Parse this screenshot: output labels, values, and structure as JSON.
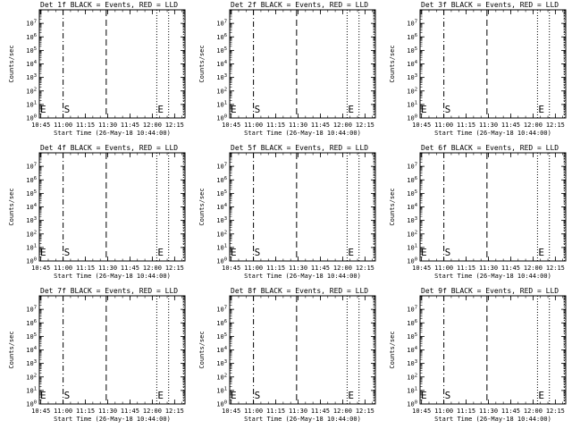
{
  "chart_data": [
    {
      "type": "line",
      "title": "Det 1f BLACK = Events, RED = LLD",
      "xlabel": "Start Time (26-May-18 10:44:00)",
      "ylabel": "Counts/sec",
      "yscale": "log",
      "ylim": [
        1,
        100000000
      ],
      "xlim": [
        "10:44",
        "12:22"
      ],
      "x_ticks": [
        "10:45",
        "11:00",
        "11:15",
        "11:30",
        "11:45",
        "12:00",
        "12:15"
      ],
      "y_ticks": [
        "10^0",
        "10^1",
        "10^2",
        "10^3",
        "10^4",
        "10^5",
        "10^6",
        "10^7"
      ],
      "series": [],
      "markers": [
        {
          "time": "10:44",
          "style": "dotted",
          "label": "E"
        },
        {
          "time": "11:00",
          "style": "dashdot",
          "label": "S"
        },
        {
          "time": "11:29",
          "style": "dashed",
          "label": ""
        },
        {
          "time": "12:03",
          "style": "dotted",
          "label": "E"
        },
        {
          "time": "12:11",
          "style": "dotted",
          "label": ""
        },
        {
          "time": "12:21",
          "style": "dotted",
          "label": ""
        }
      ]
    },
    {
      "type": "line",
      "title": "Det 2f BLACK = Events, RED = LLD",
      "xlabel": "Start Time (26-May-18 10:44:00)",
      "ylabel": "Counts/sec",
      "yscale": "log",
      "ylim": [
        1,
        100000000
      ],
      "xlim": [
        "10:44",
        "12:22"
      ],
      "x_ticks": [
        "10:45",
        "11:00",
        "11:15",
        "11:30",
        "11:45",
        "12:00",
        "12:15"
      ],
      "y_ticks": [
        "10^0",
        "10^1",
        "10^2",
        "10^3",
        "10^4",
        "10^5",
        "10^6",
        "10^7"
      ],
      "series": [],
      "markers": [
        {
          "time": "10:44",
          "style": "dotted",
          "label": "E"
        },
        {
          "time": "11:00",
          "style": "dashdot",
          "label": "S"
        },
        {
          "time": "11:29",
          "style": "dashed",
          "label": ""
        },
        {
          "time": "12:03",
          "style": "dotted",
          "label": "E"
        },
        {
          "time": "12:11",
          "style": "dotted",
          "label": ""
        },
        {
          "time": "12:21",
          "style": "dotted",
          "label": ""
        }
      ]
    },
    {
      "type": "line",
      "title": "Det 3f BLACK = Events, RED = LLD",
      "xlabel": "Start Time (26-May-18 10:44:00)",
      "ylabel": "Counts/sec",
      "yscale": "log",
      "ylim": [
        1,
        100000000
      ],
      "xlim": [
        "10:44",
        "12:22"
      ],
      "x_ticks": [
        "10:45",
        "11:00",
        "11:15",
        "11:30",
        "11:45",
        "12:00",
        "12:15"
      ],
      "y_ticks": [
        "10^0",
        "10^1",
        "10^2",
        "10^3",
        "10^4",
        "10^5",
        "10^6",
        "10^7"
      ],
      "series": [],
      "markers": [
        {
          "time": "10:44",
          "style": "dotted",
          "label": "E"
        },
        {
          "time": "11:00",
          "style": "dashdot",
          "label": "S"
        },
        {
          "time": "11:29",
          "style": "dashed",
          "label": ""
        },
        {
          "time": "12:03",
          "style": "dotted",
          "label": "E"
        },
        {
          "time": "12:11",
          "style": "dotted",
          "label": ""
        },
        {
          "time": "12:21",
          "style": "dotted",
          "label": ""
        }
      ]
    },
    {
      "type": "line",
      "title": "Det 4f BLACK = Events, RED = LLD",
      "xlabel": "Start Time (26-May-18 10:44:00)",
      "ylabel": "Counts/sec",
      "yscale": "log",
      "ylim": [
        1,
        100000000
      ],
      "xlim": [
        "10:44",
        "12:22"
      ],
      "x_ticks": [
        "10:45",
        "11:00",
        "11:15",
        "11:30",
        "11:45",
        "12:00",
        "12:15"
      ],
      "y_ticks": [
        "10^0",
        "10^1",
        "10^2",
        "10^3",
        "10^4",
        "10^5",
        "10^6",
        "10^7"
      ],
      "series": [],
      "markers": [
        {
          "time": "10:44",
          "style": "dotted",
          "label": "E"
        },
        {
          "time": "11:00",
          "style": "dashdot",
          "label": "S"
        },
        {
          "time": "11:29",
          "style": "dashed",
          "label": ""
        },
        {
          "time": "12:03",
          "style": "dotted",
          "label": "E"
        },
        {
          "time": "12:11",
          "style": "dotted",
          "label": ""
        },
        {
          "time": "12:21",
          "style": "dotted",
          "label": ""
        }
      ]
    },
    {
      "type": "line",
      "title": "Det 5f BLACK = Events, RED = LLD",
      "xlabel": "Start Time (26-May-18 10:44:00)",
      "ylabel": "Counts/sec",
      "yscale": "log",
      "ylim": [
        1,
        100000000
      ],
      "xlim": [
        "10:44",
        "12:22"
      ],
      "x_ticks": [
        "10:45",
        "11:00",
        "11:15",
        "11:30",
        "11:45",
        "12:00",
        "12:15"
      ],
      "y_ticks": [
        "10^0",
        "10^1",
        "10^2",
        "10^3",
        "10^4",
        "10^5",
        "10^6",
        "10^7"
      ],
      "series": [],
      "markers": [
        {
          "time": "10:44",
          "style": "dotted",
          "label": "E"
        },
        {
          "time": "11:00",
          "style": "dashdot",
          "label": "S"
        },
        {
          "time": "11:29",
          "style": "dashed",
          "label": ""
        },
        {
          "time": "12:03",
          "style": "dotted",
          "label": "E"
        },
        {
          "time": "12:11",
          "style": "dotted",
          "label": ""
        },
        {
          "time": "12:21",
          "style": "dotted",
          "label": ""
        }
      ]
    },
    {
      "type": "line",
      "title": "Det 6f BLACK = Events, RED = LLD",
      "xlabel": "Start Time (26-May-18 10:44:00)",
      "ylabel": "Counts/sec",
      "yscale": "log",
      "ylim": [
        1,
        100000000
      ],
      "xlim": [
        "10:44",
        "12:22"
      ],
      "x_ticks": [
        "10:45",
        "11:00",
        "11:15",
        "11:30",
        "11:45",
        "12:00",
        "12:15"
      ],
      "y_ticks": [
        "10^0",
        "10^1",
        "10^2",
        "10^3",
        "10^4",
        "10^5",
        "10^6",
        "10^7"
      ],
      "series": [],
      "markers": [
        {
          "time": "10:44",
          "style": "dotted",
          "label": "E"
        },
        {
          "time": "11:00",
          "style": "dashdot",
          "label": "S"
        },
        {
          "time": "11:29",
          "style": "dashed",
          "label": ""
        },
        {
          "time": "12:03",
          "style": "dotted",
          "label": "E"
        },
        {
          "time": "12:11",
          "style": "dotted",
          "label": ""
        },
        {
          "time": "12:21",
          "style": "dotted",
          "label": ""
        }
      ]
    },
    {
      "type": "line",
      "title": "Det 7f BLACK = Events, RED = LLD",
      "xlabel": "Start Time (26-May-18 10:44:00)",
      "ylabel": "Counts/sec",
      "yscale": "log",
      "ylim": [
        1,
        100000000
      ],
      "xlim": [
        "10:44",
        "12:22"
      ],
      "x_ticks": [
        "10:45",
        "11:00",
        "11:15",
        "11:30",
        "11:45",
        "12:00",
        "12:15"
      ],
      "y_ticks": [
        "10^0",
        "10^1",
        "10^2",
        "10^3",
        "10^4",
        "10^5",
        "10^6",
        "10^7"
      ],
      "series": [],
      "markers": [
        {
          "time": "10:44",
          "style": "dotted",
          "label": "E"
        },
        {
          "time": "11:00",
          "style": "dashdot",
          "label": "S"
        },
        {
          "time": "11:29",
          "style": "dashed",
          "label": ""
        },
        {
          "time": "12:03",
          "style": "dotted",
          "label": "E"
        },
        {
          "time": "12:11",
          "style": "dotted",
          "label": ""
        },
        {
          "time": "12:21",
          "style": "dotted",
          "label": ""
        }
      ]
    },
    {
      "type": "line",
      "title": "Det 8f BLACK = Events, RED = LLD",
      "xlabel": "Start Time (26-May-18 10:44:00)",
      "ylabel": "Counts/sec",
      "yscale": "log",
      "ylim": [
        1,
        100000000
      ],
      "xlim": [
        "10:44",
        "12:22"
      ],
      "x_ticks": [
        "10:45",
        "11:00",
        "11:15",
        "11:30",
        "11:45",
        "12:00",
        "12:15"
      ],
      "y_ticks": [
        "10^0",
        "10^1",
        "10^2",
        "10^3",
        "10^4",
        "10^5",
        "10^6",
        "10^7"
      ],
      "series": [],
      "markers": [
        {
          "time": "10:44",
          "style": "dotted",
          "label": "E"
        },
        {
          "time": "11:00",
          "style": "dashdot",
          "label": "S"
        },
        {
          "time": "11:29",
          "style": "dashed",
          "label": ""
        },
        {
          "time": "12:03",
          "style": "dotted",
          "label": "E"
        },
        {
          "time": "12:11",
          "style": "dotted",
          "label": ""
        },
        {
          "time": "12:21",
          "style": "dotted",
          "label": ""
        }
      ]
    },
    {
      "type": "line",
      "title": "Det 9f BLACK = Events, RED = LLD",
      "xlabel": "Start Time (26-May-18 10:44:00)",
      "ylabel": "Counts/sec",
      "yscale": "log",
      "ylim": [
        1,
        100000000
      ],
      "xlim": [
        "10:44",
        "12:22"
      ],
      "x_ticks": [
        "10:45",
        "11:00",
        "11:15",
        "11:30",
        "11:45",
        "12:00",
        "12:15"
      ],
      "y_ticks": [
        "10^0",
        "10^1",
        "10^2",
        "10^3",
        "10^4",
        "10^5",
        "10^6",
        "10^7"
      ],
      "series": [],
      "markers": [
        {
          "time": "10:44",
          "style": "dotted",
          "label": "E"
        },
        {
          "time": "11:00",
          "style": "dashdot",
          "label": "S"
        },
        {
          "time": "11:29",
          "style": "dashed",
          "label": ""
        },
        {
          "time": "12:03",
          "style": "dotted",
          "label": "E"
        },
        {
          "time": "12:11",
          "style": "dotted",
          "label": ""
        },
        {
          "time": "12:21",
          "style": "dotted",
          "label": ""
        }
      ]
    }
  ]
}
